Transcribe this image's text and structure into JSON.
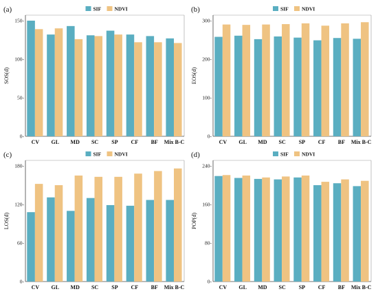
{
  "legend": {
    "sif": "SIF",
    "ndvi": "NDVI"
  },
  "colors": {
    "sif": "#5aaec1",
    "ndvi": "#efc382"
  },
  "chart_data": [
    {
      "type": "bar",
      "panel_label": "(a)",
      "ylabel": "SOS(d)",
      "ylim": [
        0,
        150
      ],
      "yticks": [
        0,
        50,
        100,
        150
      ],
      "ytick_labels": [
        "0-",
        "50-",
        "100-",
        "150-"
      ],
      "categories": [
        "CV",
        "GL",
        "MD",
        "SC",
        "SP",
        "CF",
        "BF",
        "Mix B-C"
      ],
      "series": [
        {
          "name": "SIF",
          "values": [
            150,
            132,
            143,
            131,
            137,
            132,
            130,
            127
          ]
        },
        {
          "name": "NDVI",
          "values": [
            139,
            140,
            126,
            130,
            132,
            122,
            122,
            121
          ]
        }
      ],
      "legend_position": "top-center"
    },
    {
      "type": "bar",
      "panel_label": "(b)",
      "ylabel": "EOS(d)",
      "ylim": [
        0,
        300
      ],
      "yticks": [
        0,
        100,
        200,
        300
      ],
      "ytick_labels": [
        "0-",
        "100-",
        "200-",
        "300-"
      ],
      "categories": [
        "CV",
        "GL",
        "MD",
        "SC",
        "SP",
        "CF",
        "BF",
        "Mix B-C"
      ],
      "series": [
        {
          "name": "SIF",
          "values": [
            258,
            261,
            252,
            259,
            256,
            249,
            255,
            253
          ]
        },
        {
          "name": "NDVI",
          "values": [
            290,
            289,
            290,
            291,
            293,
            287,
            293,
            296
          ]
        }
      ],
      "legend_position": "top-center"
    },
    {
      "type": "bar",
      "panel_label": "(c)",
      "ylabel": "LOS(d)",
      "ylim": [
        0,
        180
      ],
      "yticks": [
        0,
        60,
        120,
        180
      ],
      "ytick_labels": [
        "0-",
        "60-",
        "120-",
        "180-"
      ],
      "categories": [
        "CV",
        "GL",
        "MD",
        "SC",
        "SP",
        "CF",
        "BF",
        "Mix B-C"
      ],
      "series": [
        {
          "name": "SIF",
          "values": [
            108,
            131,
            110,
            130,
            119,
            118,
            127,
            127
          ]
        },
        {
          "name": "NDVI",
          "values": [
            152,
            150,
            165,
            163,
            163,
            168,
            172,
            176
          ]
        }
      ],
      "legend_position": "top-center"
    },
    {
      "type": "bar",
      "panel_label": "(d)",
      "ylabel": "POP(d)",
      "ylim": [
        0,
        240
      ],
      "yticks": [
        0,
        80,
        160,
        240
      ],
      "ytick_labels": [
        "0-",
        "80-",
        "160-",
        "240-"
      ],
      "categories": [
        "CV",
        "GL",
        "MD",
        "SC",
        "SP",
        "CF",
        "BF",
        "Mix B-C"
      ],
      "series": [
        {
          "name": "SIF",
          "values": [
            219,
            215,
            213,
            212,
            216,
            200,
            204,
            198
          ]
        },
        {
          "name": "NDVI",
          "values": [
            221,
            220,
            216,
            218,
            220,
            207,
            212,
            209
          ]
        }
      ],
      "legend_position": "top-center"
    }
  ]
}
